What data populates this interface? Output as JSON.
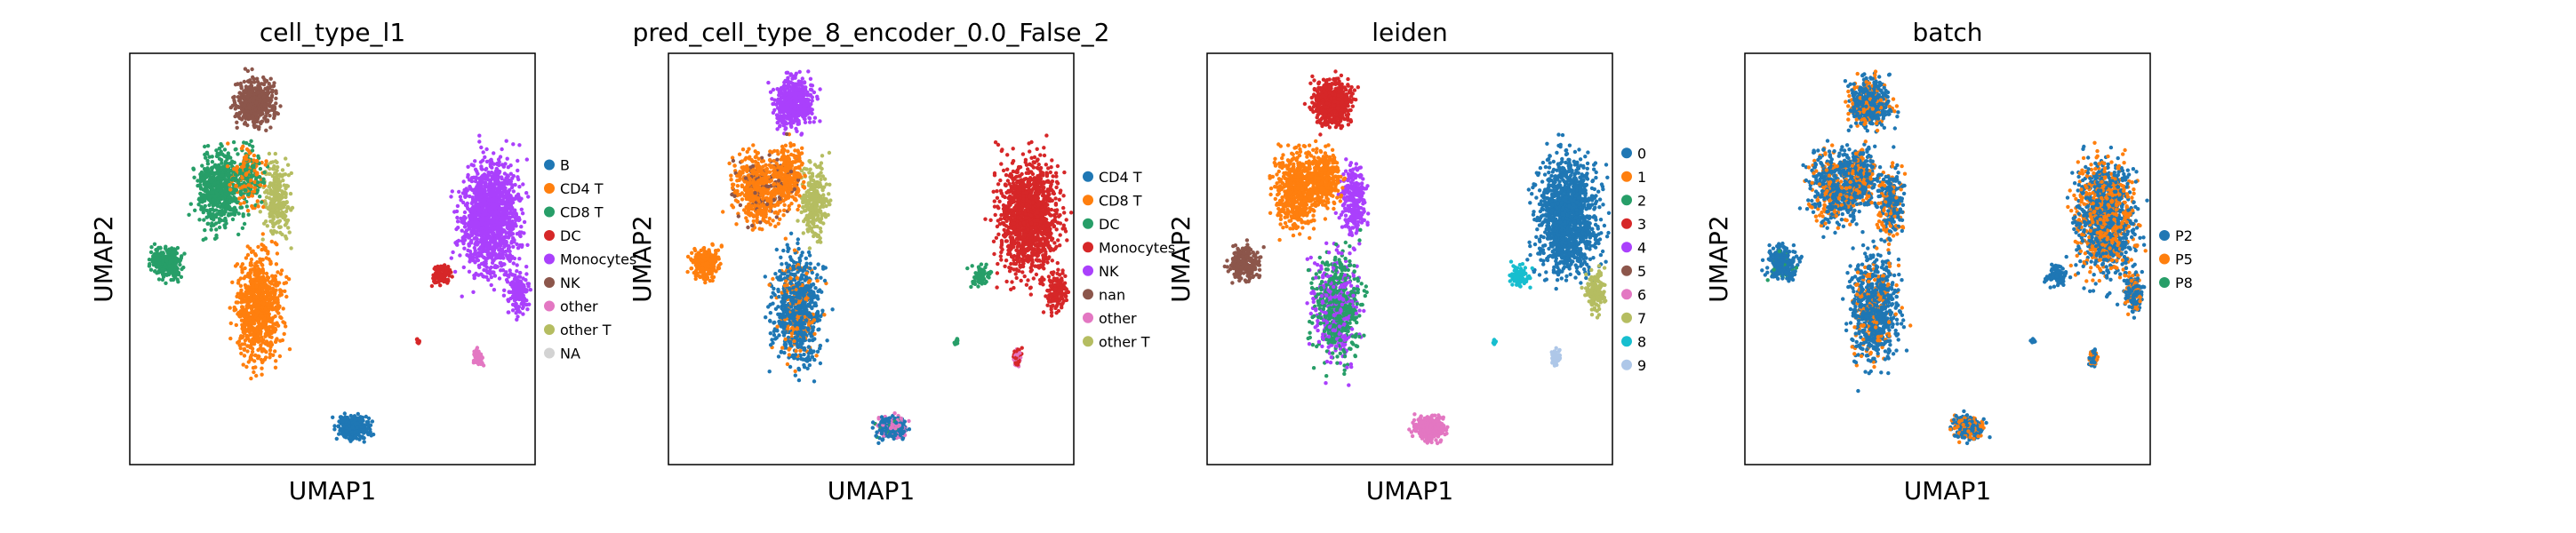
{
  "figure": {
    "background": "#ffffff"
  },
  "chart_data": [
    {
      "type": "scatter",
      "title": "cell_type_l1",
      "xlabel": "UMAP1",
      "ylabel": "UMAP2",
      "legend_position": "right",
      "series": [
        {
          "name": "B",
          "color": "#1f77b4"
        },
        {
          "name": "CD4 T",
          "color": "#ff7f0e"
        },
        {
          "name": "CD8 T",
          "color": "#279e68"
        },
        {
          "name": "DC",
          "color": "#d62728"
        },
        {
          "name": "Monocytes",
          "color": "#aa40fc"
        },
        {
          "name": "NK",
          "color": "#8c564b"
        },
        {
          "name": "other",
          "color": "#e377c2"
        },
        {
          "name": "other T",
          "color": "#b5bd61"
        },
        {
          "name": "NA",
          "color": "#d3d3d3"
        }
      ]
    },
    {
      "type": "scatter",
      "title": "pred_cell_type_8_encoder_0.0_False_2",
      "xlabel": "UMAP1",
      "ylabel": "UMAP2",
      "legend_position": "right",
      "series": [
        {
          "name": "CD4 T",
          "color": "#1f77b4"
        },
        {
          "name": "CD8 T",
          "color": "#ff7f0e"
        },
        {
          "name": "DC",
          "color": "#279e68"
        },
        {
          "name": "Monocytes",
          "color": "#d62728"
        },
        {
          "name": "NK",
          "color": "#aa40fc"
        },
        {
          "name": "nan",
          "color": "#8c564b"
        },
        {
          "name": "other",
          "color": "#e377c2"
        },
        {
          "name": "other T",
          "color": "#b5bd61"
        }
      ]
    },
    {
      "type": "scatter",
      "title": "leiden",
      "xlabel": "UMAP1",
      "ylabel": "UMAP2",
      "legend_position": "right",
      "series": [
        {
          "name": "0",
          "color": "#1f77b4"
        },
        {
          "name": "1",
          "color": "#ff7f0e"
        },
        {
          "name": "2",
          "color": "#279e68"
        },
        {
          "name": "3",
          "color": "#d62728"
        },
        {
          "name": "4",
          "color": "#aa40fc"
        },
        {
          "name": "5",
          "color": "#8c564b"
        },
        {
          "name": "6",
          "color": "#e377c2"
        },
        {
          "name": "7",
          "color": "#b5bd61"
        },
        {
          "name": "8",
          "color": "#17becf"
        },
        {
          "name": "9",
          "color": "#aec7e8"
        }
      ]
    },
    {
      "type": "scatter",
      "title": "batch",
      "xlabel": "UMAP1",
      "ylabel": "UMAP2",
      "legend_position": "right",
      "series": [
        {
          "name": "P2",
          "color": "#1f77b4"
        },
        {
          "name": "P5",
          "color": "#ff7f0e"
        },
        {
          "name": "P8",
          "color": "#279e68"
        }
      ]
    }
  ]
}
